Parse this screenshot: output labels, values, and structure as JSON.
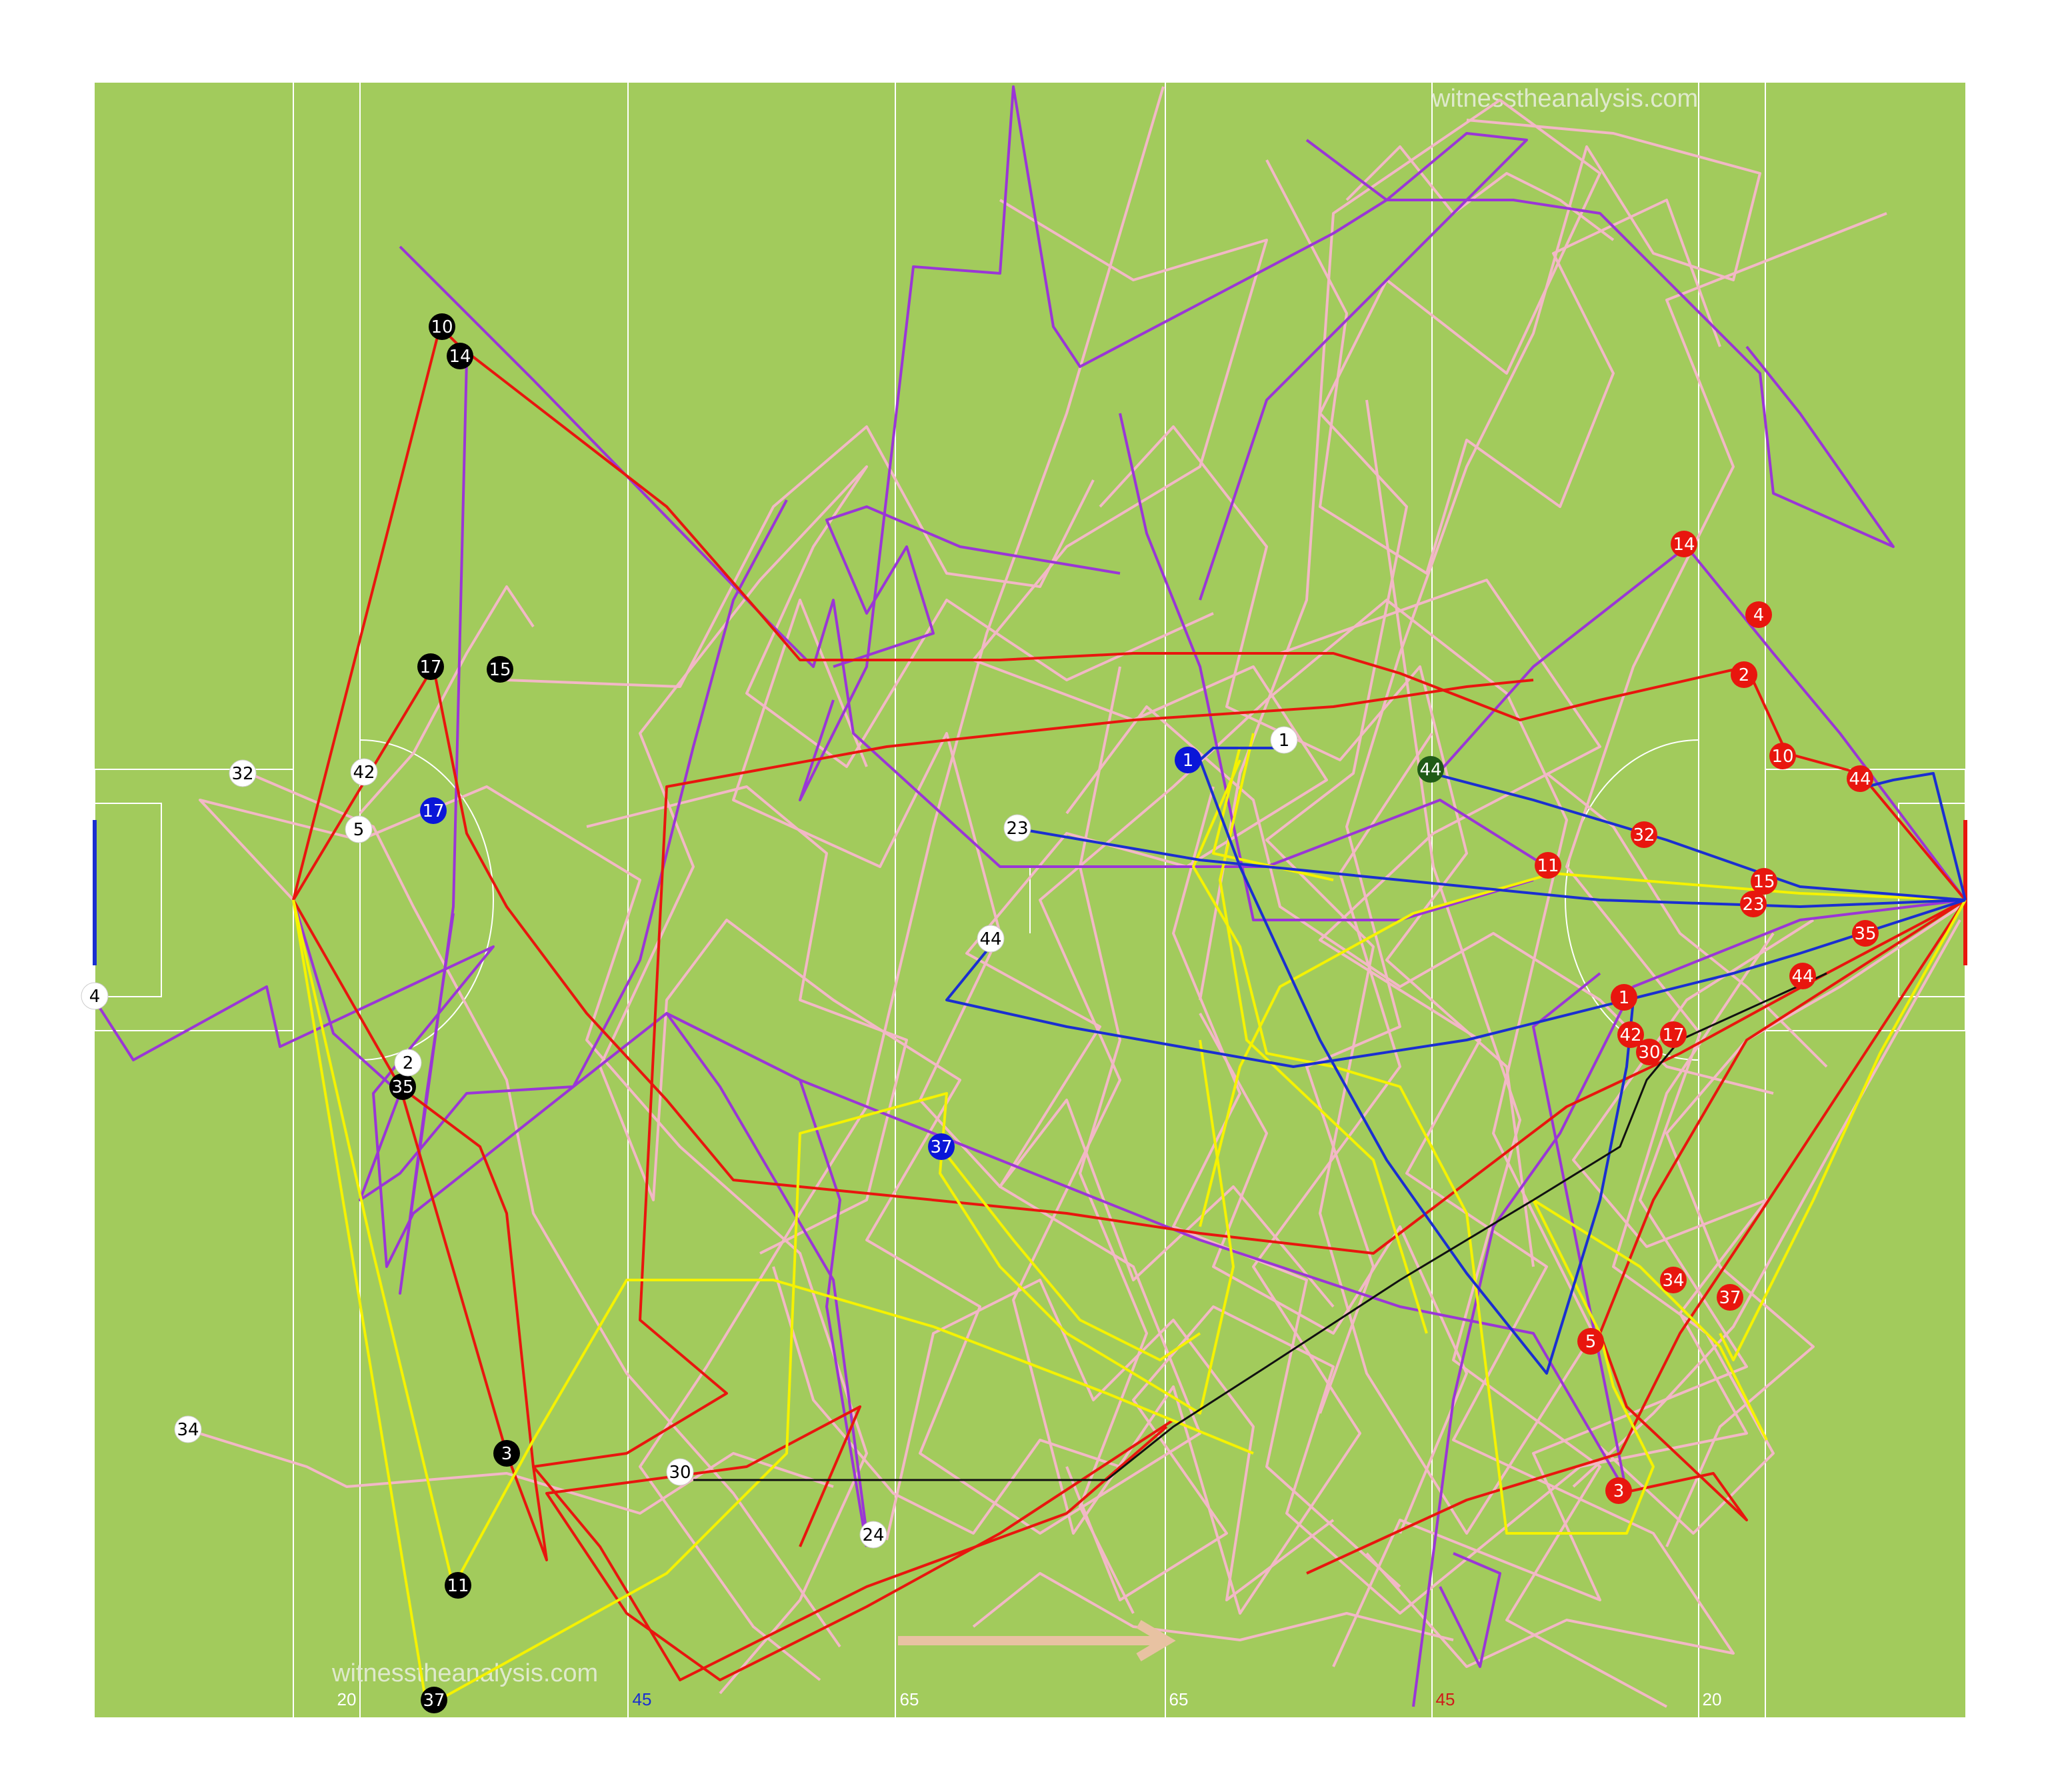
{
  "watermarks": {
    "top": "witnesstheanalysis.com",
    "bottom": "witnesstheanalysis.com"
  },
  "distance_labels": [
    {
      "text": "20",
      "color": "#ffffff"
    },
    {
      "text": "45",
      "color": "#1a2fd0"
    },
    {
      "text": "65",
      "color": "#ffffff"
    },
    {
      "text": "65",
      "color": "#ffffff"
    },
    {
      "text": "45",
      "color": "#d01a1a"
    },
    {
      "text": "20",
      "color": "#ffffff"
    }
  ],
  "colors": {
    "grass": "#a2cb5c",
    "pitch_lines": "#ffffff",
    "pink": "#f2b8c6",
    "purple": "#9a36d6",
    "red": "#e8160e",
    "yellow": "#f5f200",
    "blue": "#1a2fd0",
    "black": "#111111",
    "green_marker": "#1f5a17",
    "direction_arrow": "#e8c2a2",
    "left_goal": "#1a2fd0",
    "right_goal": "#e8160e"
  },
  "markers": [
    {
      "label": "10",
      "fill": "black"
    },
    {
      "label": "14",
      "fill": "black"
    },
    {
      "label": "17",
      "fill": "black"
    },
    {
      "label": "15",
      "fill": "black"
    },
    {
      "label": "35",
      "fill": "black"
    },
    {
      "label": "3",
      "fill": "black"
    },
    {
      "label": "11",
      "fill": "black"
    },
    {
      "label": "37",
      "fill": "black"
    },
    {
      "label": "32",
      "fill": "white"
    },
    {
      "label": "42",
      "fill": "white"
    },
    {
      "label": "5",
      "fill": "white"
    },
    {
      "label": "2",
      "fill": "white"
    },
    {
      "label": "34",
      "fill": "white"
    },
    {
      "label": "4",
      "fill": "white"
    },
    {
      "label": "1",
      "fill": "white"
    },
    {
      "label": "23",
      "fill": "white"
    },
    {
      "label": "44",
      "fill": "white"
    },
    {
      "label": "30",
      "fill": "white"
    },
    {
      "label": "24",
      "fill": "white"
    },
    {
      "label": "17",
      "fill": "blue"
    },
    {
      "label": "1",
      "fill": "blue"
    },
    {
      "label": "37",
      "fill": "blue"
    },
    {
      "label": "44",
      "fill": "green"
    },
    {
      "label": "14",
      "fill": "red"
    },
    {
      "label": "4",
      "fill": "red"
    },
    {
      "label": "2",
      "fill": "red"
    },
    {
      "label": "10",
      "fill": "red"
    },
    {
      "label": "44",
      "fill": "red"
    },
    {
      "label": "32",
      "fill": "red"
    },
    {
      "label": "11",
      "fill": "red"
    },
    {
      "label": "15",
      "fill": "red"
    },
    {
      "label": "23",
      "fill": "red"
    },
    {
      "label": "35",
      "fill": "red"
    },
    {
      "label": "44",
      "fill": "red"
    },
    {
      "label": "1",
      "fill": "red"
    },
    {
      "label": "42",
      "fill": "red"
    },
    {
      "label": "17",
      "fill": "red"
    },
    {
      "label": "30",
      "fill": "red"
    },
    {
      "label": "34",
      "fill": "red"
    },
    {
      "label": "37",
      "fill": "red"
    },
    {
      "label": "5",
      "fill": "red"
    },
    {
      "label": "3",
      "fill": "red"
    }
  ]
}
